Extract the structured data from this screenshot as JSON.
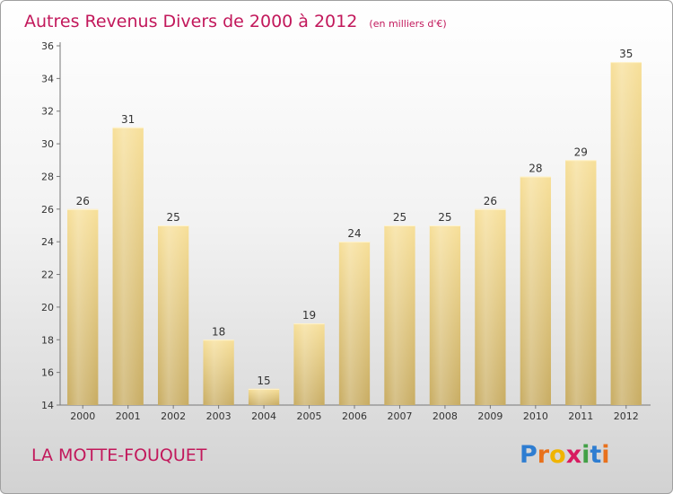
{
  "chart_data": {
    "type": "bar",
    "title": "Autres Revenus Divers de 2000 à 2012",
    "subtitle": "(en milliers d'€)",
    "categories": [
      "2000",
      "2001",
      "2002",
      "2003",
      "2004",
      "2005",
      "2006",
      "2007",
      "2008",
      "2009",
      "2010",
      "2011",
      "2012"
    ],
    "values": [
      26,
      31,
      25,
      18,
      15,
      19,
      24,
      25,
      25,
      26,
      28,
      29,
      35
    ],
    "ylim": [
      14,
      36
    ],
    "yticks": [
      14,
      16,
      18,
      20,
      22,
      24,
      26,
      28,
      30,
      32,
      34,
      36
    ],
    "xlabel": "",
    "ylabel": "",
    "grid": false,
    "legend": "none",
    "bar_color": "#e4c77e"
  },
  "commune": "LA MOTTE-FOUQUET",
  "logo": {
    "letters": [
      {
        "char": "P",
        "color": "#2e7dd1"
      },
      {
        "char": "r",
        "color": "#e8711c"
      },
      {
        "char": "o",
        "color": "#f0b400"
      },
      {
        "char": "x",
        "color": "#d81b60"
      },
      {
        "char": "i",
        "color": "#43a047"
      },
      {
        "char": "t",
        "color": "#2e7dd1"
      },
      {
        "char": "i",
        "color": "#e8711c"
      }
    ]
  }
}
